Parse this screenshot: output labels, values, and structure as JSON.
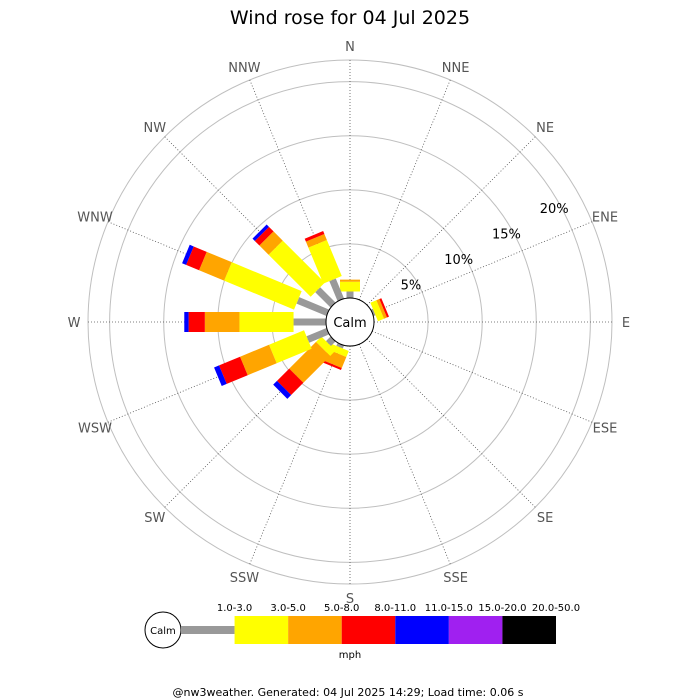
{
  "chart_data": {
    "type": "windrose",
    "title": "Wind rose for 04 Jul 2025",
    "calm_label": "Calm",
    "directions": [
      "N",
      "NNE",
      "NE",
      "ENE",
      "E",
      "ESE",
      "SE",
      "SSE",
      "S",
      "SSW",
      "SW",
      "WSW",
      "W",
      "WNW",
      "NW",
      "NNW"
    ],
    "ring_labels": [
      "5%",
      "10%",
      "15%",
      "20%"
    ],
    "ring_values": [
      5,
      10,
      15,
      20
    ],
    "r_max": 22,
    "units": "mph",
    "speed_bins": [
      {
        "label": "1.0-3.0",
        "color": "#999999"
      },
      {
        "label": "3.0-5.0",
        "color": "#ffff00"
      },
      {
        "label": "5.0-8.0",
        "color": "#ffa500"
      },
      {
        "label": "8.0-11.0",
        "color": "#ff0000"
      },
      {
        "label": "11.0-15.0",
        "color": "#0000ff"
      },
      {
        "label": "15.0-20.0",
        "color": "#a020f0"
      },
      {
        "label": "20.0-50.0",
        "color": "#000000"
      }
    ],
    "series": [
      {
        "direction": "N",
        "values": [
          0.6,
          0.9,
          0.2,
          0.0,
          0.0,
          0,
          0
        ]
      },
      {
        "direction": "NNE",
        "values": [
          0.0,
          0.0,
          0.0,
          0.0,
          0.0,
          0,
          0
        ]
      },
      {
        "direction": "NE",
        "values": [
          0.0,
          0.0,
          0.0,
          0.0,
          0.0,
          0,
          0
        ]
      },
      {
        "direction": "ENE",
        "values": [
          0.2,
          0.6,
          0.3,
          0.2,
          0.0,
          0,
          0
        ]
      },
      {
        "direction": "E",
        "values": [
          0.0,
          0.0,
          0.0,
          0.0,
          0.0,
          0,
          0
        ]
      },
      {
        "direction": "ESE",
        "values": [
          0.0,
          0.0,
          0.0,
          0.0,
          0.0,
          0,
          0
        ]
      },
      {
        "direction": "SE",
        "values": [
          0.0,
          0.0,
          0.0,
          0.0,
          0.0,
          0,
          0
        ]
      },
      {
        "direction": "SSE",
        "values": [
          0.0,
          0.0,
          0.0,
          0.0,
          0.0,
          0,
          0
        ]
      },
      {
        "direction": "S",
        "values": [
          0.0,
          0.0,
          0.0,
          0.0,
          0.0,
          0,
          0
        ]
      },
      {
        "direction": "SSW",
        "values": [
          0.3,
          0.6,
          1.1,
          0.2,
          0.0,
          0,
          0
        ]
      },
      {
        "direction": "SW",
        "values": [
          0.6,
          0.7,
          3.5,
          1.6,
          0.5,
          0,
          0
        ]
      },
      {
        "direction": "WSW",
        "values": [
          2.0,
          3.5,
          2.9,
          2.1,
          0.5,
          0,
          0
        ]
      },
      {
        "direction": "W",
        "values": [
          3.0,
          5.0,
          3.2,
          1.5,
          0.4,
          0,
          0
        ]
      },
      {
        "direction": "WNW",
        "values": [
          3.0,
          7.0,
          2.5,
          1.3,
          0.4,
          0,
          0
        ]
      },
      {
        "direction": "NW",
        "values": [
          2.0,
          5.5,
          1.2,
          0.6,
          0.3,
          0,
          0
        ]
      },
      {
        "direction": "NNW",
        "values": [
          2.0,
          3.6,
          0.6,
          0.3,
          0.0,
          0,
          0
        ]
      }
    ]
  },
  "footer": "@nw3weather. Generated: 04 Jul 2025 14:29; Load time: 0.06 s"
}
